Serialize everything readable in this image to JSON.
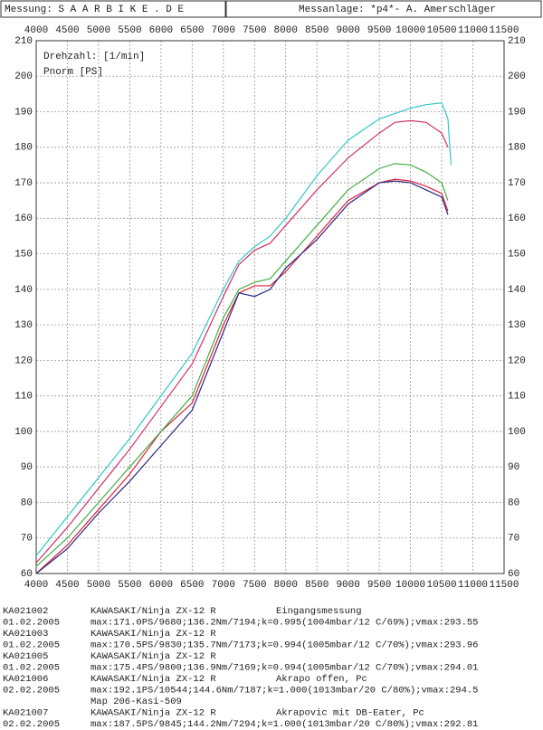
{
  "header": {
    "left": "Messung: S A A R B I K E . D E",
    "right": "Messanlage: *p4*- A. Amerschläger"
  },
  "chart_data": {
    "type": "line",
    "xlabel": "Drehzahl: [1/min]",
    "ylabel": "Pnorm [PS]",
    "xlim": [
      4000,
      11500
    ],
    "xticks": [
      4000,
      4500,
      5000,
      5500,
      6000,
      6500,
      7000,
      7500,
      8000,
      8500,
      9000,
      9500,
      10000,
      10500,
      11000,
      11500
    ],
    "ylim": [
      60,
      210
    ],
    "yticks": [
      60,
      70,
      80,
      90,
      100,
      110,
      120,
      130,
      140,
      150,
      160,
      170,
      180,
      190,
      200,
      210
    ],
    "grid": true,
    "series": [
      {
        "name": "KA021002",
        "date": "01.02.2005",
        "model": "KAWASAKI/Ninja  ZX-12 R",
        "description": "Eingangsmessung",
        "stats": "max:171.0PS/9680;136.2Nm/7194;k=0.995(1004mbar/12 C/69%);vmax:293.55",
        "color": "#e02040",
        "x": [
          4000,
          4500,
          5000,
          5500,
          6000,
          6500,
          7000,
          7250,
          7500,
          7750,
          8000,
          8500,
          9000,
          9500,
          9750,
          10000,
          10250,
          10500,
          10600
        ],
        "values": [
          60,
          68,
          78,
          88,
          100,
          108,
          130,
          139,
          141,
          141,
          145,
          155,
          165,
          170,
          171,
          170.5,
          169,
          167,
          162
        ]
      },
      {
        "name": "KA021003",
        "date": "01.02.2005",
        "model": "KAWASAKI/Ninja  ZX-12 R",
        "stats": "max:170.5PS/9830;135.7Nm/7173;k=0.994(1005mbar/12 C/70%);vmax:293.96",
        "color": "#2a2a80",
        "x": [
          4000,
          4500,
          5000,
          5500,
          6000,
          6500,
          7000,
          7250,
          7500,
          7750,
          8000,
          8500,
          9000,
          9500,
          9750,
          10000,
          10250,
          10500,
          10600
        ],
        "values": [
          60,
          67,
          77,
          86,
          96,
          106,
          128,
          139,
          138,
          140,
          146,
          154,
          164,
          170,
          170.5,
          170,
          168,
          166,
          161
        ]
      },
      {
        "name": "KA021005",
        "date": "01.02.2005",
        "model": "KAWASAKI/Ninja  ZX-12 R",
        "stats": "max:175.4PS/9800;136.9Nm/7169;k=0.994(1005mbar/12 C/70%);vmax:294.01",
        "color": "#40b040",
        "x": [
          4000,
          4500,
          5000,
          5500,
          6000,
          6500,
          7000,
          7250,
          7500,
          7750,
          8000,
          8500,
          9000,
          9500,
          9750,
          10000,
          10250,
          10500,
          10600
        ],
        "values": [
          62,
          70,
          80,
          90,
          100,
          110,
          132,
          140,
          142,
          143,
          148,
          158,
          168,
          174,
          175.4,
          175,
          173,
          170,
          165
        ]
      },
      {
        "name": "KA021006",
        "date": "02.02.2005",
        "model": "KAWASAKI/Ninja  ZX-12 R",
        "description": "Akrapo offen, Pc",
        "stats": "max:192.1PS/10544;144.6Nm/7187;k=1.000(1013mbar/20 C/80%);vmax:294.5",
        "note": "Map 206-Kasi-509",
        "color": "#30c8c8",
        "x": [
          4000,
          4500,
          5000,
          5500,
          6000,
          6500,
          7000,
          7250,
          7500,
          7750,
          8000,
          8500,
          9000,
          9500,
          10000,
          10250,
          10500,
          10600,
          10650
        ],
        "values": [
          65,
          76,
          87,
          98,
          110,
          122,
          140,
          148,
          152,
          155,
          160,
          172,
          182,
          188,
          191,
          192,
          192.5,
          188,
          175
        ]
      },
      {
        "name": "KA021007",
        "date": "02.02.2005",
        "model": "KAWASAKI/Ninja  ZX-12 R",
        "description": "Akrapovic mit DB-Eater, Pc",
        "stats": "max:187.5PS/9845;144.2Nm/7294;k=1.000(1013mbar/20 C/80%);vmax:292.81",
        "color": "#d0306a",
        "x": [
          4000,
          4500,
          5000,
          5500,
          6000,
          6500,
          7000,
          7250,
          7500,
          7750,
          8000,
          8500,
          9000,
          9500,
          9750,
          10000,
          10250,
          10500,
          10600
        ],
        "values": [
          63,
          73,
          84,
          95,
          107,
          119,
          138,
          147,
          151,
          153,
          158,
          168,
          177,
          184,
          187,
          187.5,
          187,
          184,
          180
        ]
      }
    ]
  }
}
